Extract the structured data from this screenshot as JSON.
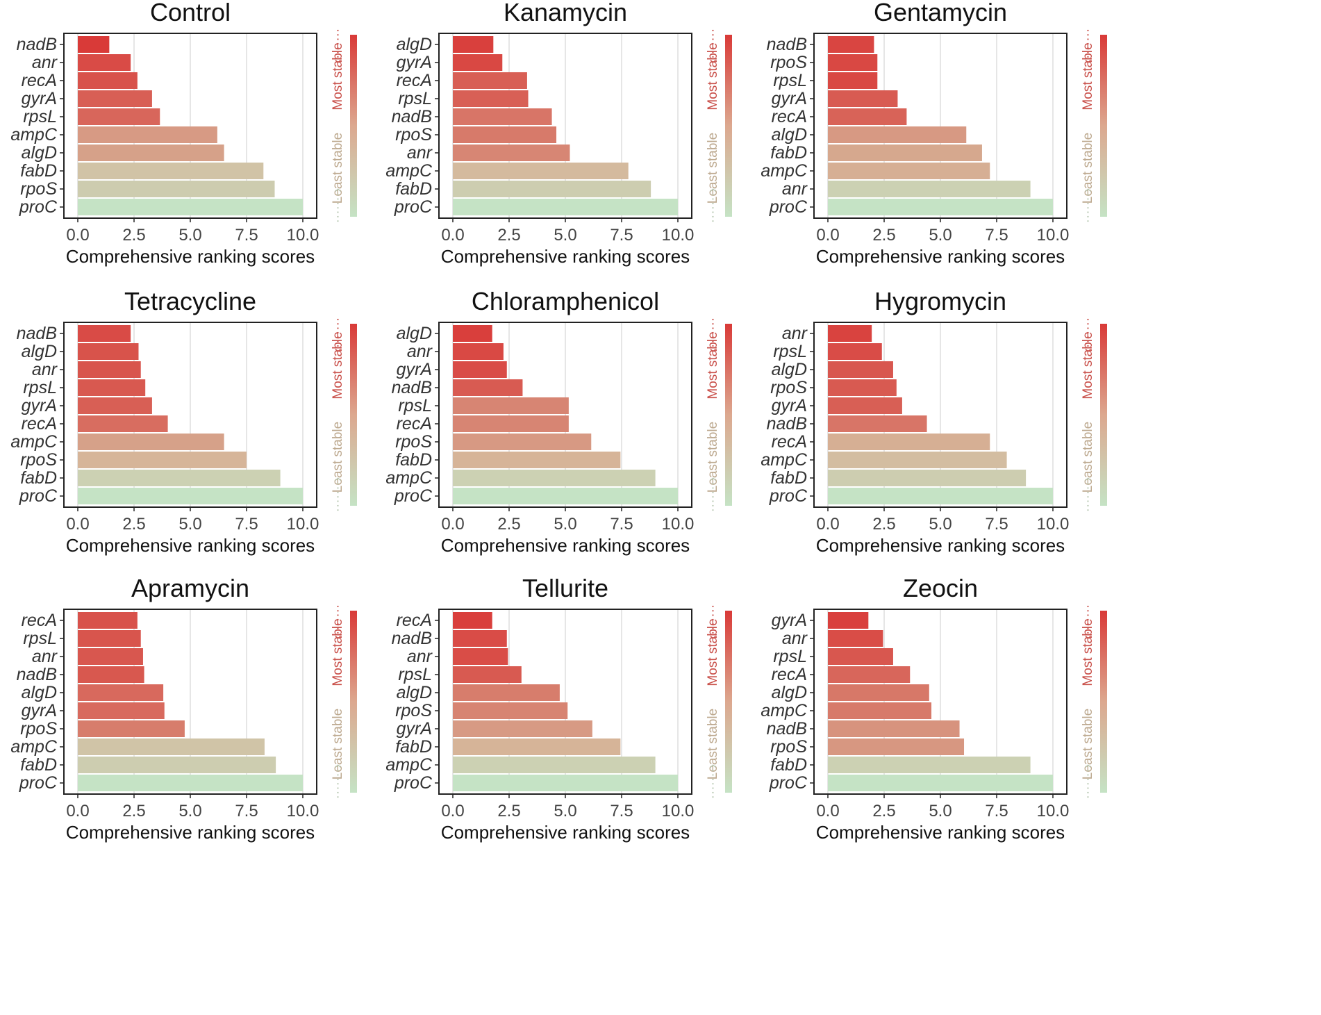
{
  "chart_data": [
    {
      "type": "bar",
      "orientation": "horizontal",
      "title": "Control",
      "xlabel": "Comprehensive ranking scores",
      "xlim": [
        0,
        10
      ],
      "xticks": [
        "0.0",
        "2.5",
        "5.0",
        "7.5",
        "10.0"
      ],
      "categories": [
        "nadB",
        "anr",
        "recA",
        "gyrA",
        "rpsL",
        "ampC",
        "algD",
        "fabD",
        "rpoS",
        "proC"
      ],
      "values": [
        1.4,
        2.35,
        2.65,
        3.3,
        3.65,
        6.2,
        6.5,
        8.25,
        8.75,
        10.0
      ]
    },
    {
      "type": "bar",
      "orientation": "horizontal",
      "title": "Kanamycin",
      "xlabel": "Comprehensive ranking scores",
      "xlim": [
        0,
        10
      ],
      "xticks": [
        "0.0",
        "2.5",
        "5.0",
        "7.5",
        "10.0"
      ],
      "categories": [
        "algD",
        "gyrA",
        "recA",
        "rpsL",
        "nadB",
        "rpoS",
        "anr",
        "ampC",
        "fabD",
        "proC"
      ],
      "values": [
        1.8,
        2.2,
        3.3,
        3.35,
        4.4,
        4.6,
        5.2,
        7.8,
        8.8,
        10.0
      ]
    },
    {
      "type": "bar",
      "orientation": "horizontal",
      "title": "Gentamycin",
      "xlabel": "Comprehensive ranking scores",
      "xlim": [
        0,
        10
      ],
      "xticks": [
        "0.0",
        "2.5",
        "5.0",
        "7.5",
        "10.0"
      ],
      "categories": [
        "nadB",
        "rpoS",
        "rpsL",
        "gyrA",
        "recA",
        "algD",
        "fabD",
        "ampC",
        "anr",
        "proC"
      ],
      "values": [
        2.05,
        2.2,
        2.2,
        3.1,
        3.5,
        6.15,
        6.85,
        7.2,
        9.0,
        10.0
      ]
    },
    {
      "type": "bar",
      "orientation": "horizontal",
      "title": "Tetracycline",
      "xlabel": "Comprehensive ranking scores",
      "xlim": [
        0,
        10
      ],
      "xticks": [
        "0.0",
        "2.5",
        "5.0",
        "7.5",
        "10.0"
      ],
      "categories": [
        "nadB",
        "algD",
        "anr",
        "rpsL",
        "gyrA",
        "recA",
        "ampC",
        "rpoS",
        "fabD",
        "proC"
      ],
      "values": [
        2.35,
        2.7,
        2.8,
        3.0,
        3.3,
        4.0,
        6.5,
        7.5,
        9.0,
        10.0
      ]
    },
    {
      "type": "bar",
      "orientation": "horizontal",
      "title": "Chloramphenicol",
      "xlabel": "Comprehensive ranking scores",
      "xlim": [
        0,
        10
      ],
      "xticks": [
        "0.0",
        "2.5",
        "5.0",
        "7.5",
        "10.0"
      ],
      "categories": [
        "algD",
        "anr",
        "gyrA",
        "nadB",
        "rpsL",
        "recA",
        "rpoS",
        "fabD",
        "ampC",
        "proC"
      ],
      "values": [
        1.75,
        2.25,
        2.4,
        3.1,
        5.15,
        5.15,
        6.15,
        7.45,
        9.0,
        10.0
      ]
    },
    {
      "type": "bar",
      "orientation": "horizontal",
      "title": "Hygromycin",
      "xlabel": "Comprehensive ranking scores",
      "xlim": [
        0,
        10
      ],
      "xticks": [
        "0.0",
        "2.5",
        "5.0",
        "7.5",
        "10.0"
      ],
      "categories": [
        "anr",
        "rpsL",
        "algD",
        "rpoS",
        "gyrA",
        "nadB",
        "recA",
        "ampC",
        "fabD",
        "proC"
      ],
      "values": [
        1.95,
        2.4,
        2.9,
        3.05,
        3.3,
        4.4,
        7.2,
        7.95,
        8.8,
        10.0
      ]
    },
    {
      "type": "bar",
      "orientation": "horizontal",
      "title": "Apramycin",
      "xlabel": "Comprehensive ranking scores",
      "xlim": [
        0,
        10
      ],
      "xticks": [
        "0.0",
        "2.5",
        "5.0",
        "7.5",
        "10.0"
      ],
      "categories": [
        "recA",
        "rpsL",
        "anr",
        "nadB",
        "algD",
        "gyrA",
        "rpoS",
        "ampC",
        "fabD",
        "proC"
      ],
      "values": [
        2.65,
        2.8,
        2.9,
        2.95,
        3.8,
        3.85,
        4.75,
        8.3,
        8.8,
        10.0
      ]
    },
    {
      "type": "bar",
      "orientation": "horizontal",
      "title": "Tellurite",
      "xlabel": "Comprehensive ranking scores",
      "xlim": [
        0,
        10
      ],
      "xticks": [
        "0.0",
        "2.5",
        "5.0",
        "7.5",
        "10.0"
      ],
      "categories": [
        "recA",
        "nadB",
        "anr",
        "rpsL",
        "algD",
        "rpoS",
        "gyrA",
        "fabD",
        "ampC",
        "proC"
      ],
      "values": [
        1.75,
        2.4,
        2.45,
        3.05,
        4.75,
        5.1,
        6.2,
        7.45,
        9.0,
        10.0
      ]
    },
    {
      "type": "bar",
      "orientation": "horizontal",
      "title": "Zeocin",
      "xlabel": "Comprehensive ranking scores",
      "xlim": [
        0,
        10
      ],
      "xticks": [
        "0.0",
        "2.5",
        "5.0",
        "7.5",
        "10.0"
      ],
      "categories": [
        "gyrA",
        "anr",
        "rpsL",
        "recA",
        "algD",
        "ampC",
        "nadB",
        "rpoS",
        "fabD",
        "proC"
      ],
      "values": [
        1.8,
        2.45,
        2.9,
        3.65,
        4.5,
        4.6,
        5.85,
        6.05,
        9.0,
        10.0
      ]
    }
  ],
  "stability_scale": {
    "most": "Most stable",
    "least": "Least stable",
    "arrow_top": "‹·······",
    "arrow_bottom": "·······›"
  },
  "colors": {
    "high_stability": "#d93a38",
    "mid_stability": "#d6b498",
    "low_stability": "#c5e3c5",
    "axis": "#222222",
    "grid": "#e6e6e6"
  }
}
